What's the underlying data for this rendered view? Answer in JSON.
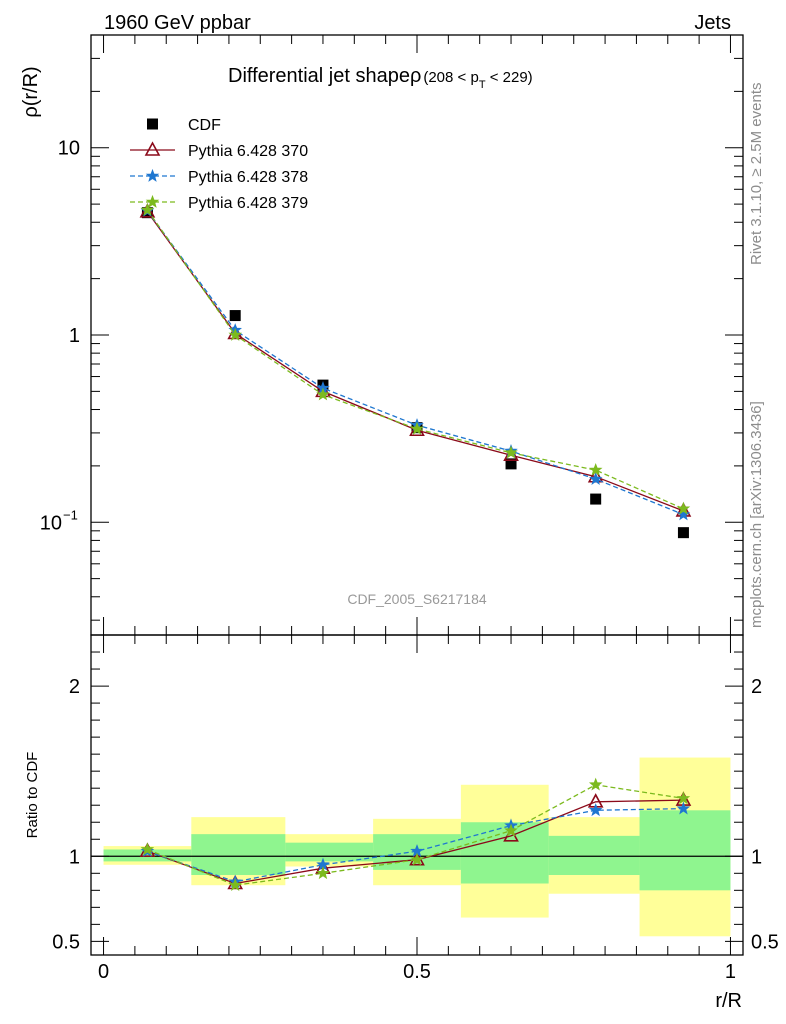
{
  "header": {
    "left": "1960 GeV ppbar",
    "right": "Jets",
    "side_rivet": "Rivet 3.1.10, ≥ 2.5M events",
    "side_mcplots": "mcplots.cern.ch [arXiv:1306.3436]"
  },
  "chart_data": [
    {
      "type": "scatter",
      "title": "Differential jet shapeρ",
      "title_range": "(208 < p",
      "title_sub": "T",
      "title_range_end": " < 229)",
      "ylabel": "ρ(r/R)",
      "xlabel": "",
      "ylim": [
        0.025,
        40
      ],
      "xlim": [
        -0.02,
        1.02
      ],
      "yscale": "log",
      "yticks": [
        {
          "value": 0.1,
          "label": "10",
          "exp": "−1"
        },
        {
          "value": 1,
          "label": "1",
          "exp": ""
        },
        {
          "value": 10,
          "label": "10",
          "exp": ""
        }
      ],
      "watermark": "CDF_2005_S6217184",
      "legend_placement": "top-left",
      "x": [
        0.07,
        0.21,
        0.35,
        0.5,
        0.65,
        0.785,
        0.925
      ],
      "series": [
        {
          "name": "CDF",
          "color": "#000000",
          "marker": "square",
          "line": "none",
          "values": [
            4.5,
            1.27,
            0.54,
            0.32,
            0.205,
            0.133,
            0.088
          ]
        },
        {
          "name": "Pythia 6.428 370",
          "color": "#8b0a1a",
          "marker": "triangle",
          "line": "solid",
          "values": [
            4.55,
            1.02,
            0.5,
            0.31,
            0.228,
            0.175,
            0.115
          ]
        },
        {
          "name": "Pythia 6.428 378",
          "color": "#1f77d0",
          "marker": "star",
          "line": "dashed",
          "values": [
            4.6,
            1.06,
            0.52,
            0.33,
            0.24,
            0.17,
            0.11
          ]
        },
        {
          "name": "Pythia 6.428 379",
          "color": "#7cba1e",
          "marker": "star",
          "line": "dashed",
          "values": [
            4.65,
            1.0,
            0.48,
            0.315,
            0.235,
            0.19,
            0.118
          ]
        }
      ]
    },
    {
      "type": "line",
      "ylabel": "Ratio to CDF",
      "xlabel": "r/R",
      "ylim": [
        0.42,
        2.3
      ],
      "xlim": [
        -0.02,
        1.02
      ],
      "yticks": [
        0.5,
        1,
        2
      ],
      "xticks": [
        0,
        0.5,
        1
      ],
      "ytick_labels": [
        "0.5",
        "1",
        "2"
      ],
      "xtick_labels": [
        "0",
        "0.5",
        "1"
      ],
      "bands": {
        "x_edges": [
          0,
          0.14,
          0.29,
          0.43,
          0.57,
          0.71,
          0.855,
          1.0
        ],
        "yellow_low": [
          0.95,
          0.83,
          0.94,
          0.83,
          0.64,
          0.78,
          0.53
        ],
        "yellow_high": [
          1.06,
          1.23,
          1.13,
          1.22,
          1.42,
          1.23,
          1.58
        ],
        "green_low": [
          0.97,
          0.89,
          0.97,
          0.92,
          0.84,
          0.89,
          0.8
        ],
        "green_high": [
          1.04,
          1.13,
          1.08,
          1.13,
          1.2,
          1.12,
          1.27
        ]
      },
      "band_colors": {
        "yellow": "#ffff99",
        "green": "#8ff58f"
      },
      "x": [
        0.07,
        0.21,
        0.35,
        0.5,
        0.65,
        0.785,
        0.925
      ],
      "series": [
        {
          "name": "Pythia 6.428 370",
          "color": "#8b0a1a",
          "marker": "triangle",
          "line": "solid",
          "values": [
            1.03,
            0.84,
            0.93,
            0.98,
            1.12,
            1.32,
            1.33
          ]
        },
        {
          "name": "Pythia 6.428 378",
          "color": "#1f77d0",
          "marker": "star",
          "line": "dashed",
          "values": [
            1.03,
            0.85,
            0.95,
            1.03,
            1.18,
            1.27,
            1.28
          ]
        },
        {
          "name": "Pythia 6.428 379",
          "color": "#7cba1e",
          "marker": "star",
          "line": "dashed",
          "values": [
            1.04,
            0.83,
            0.9,
            0.98,
            1.15,
            1.42,
            1.34
          ]
        }
      ]
    }
  ]
}
